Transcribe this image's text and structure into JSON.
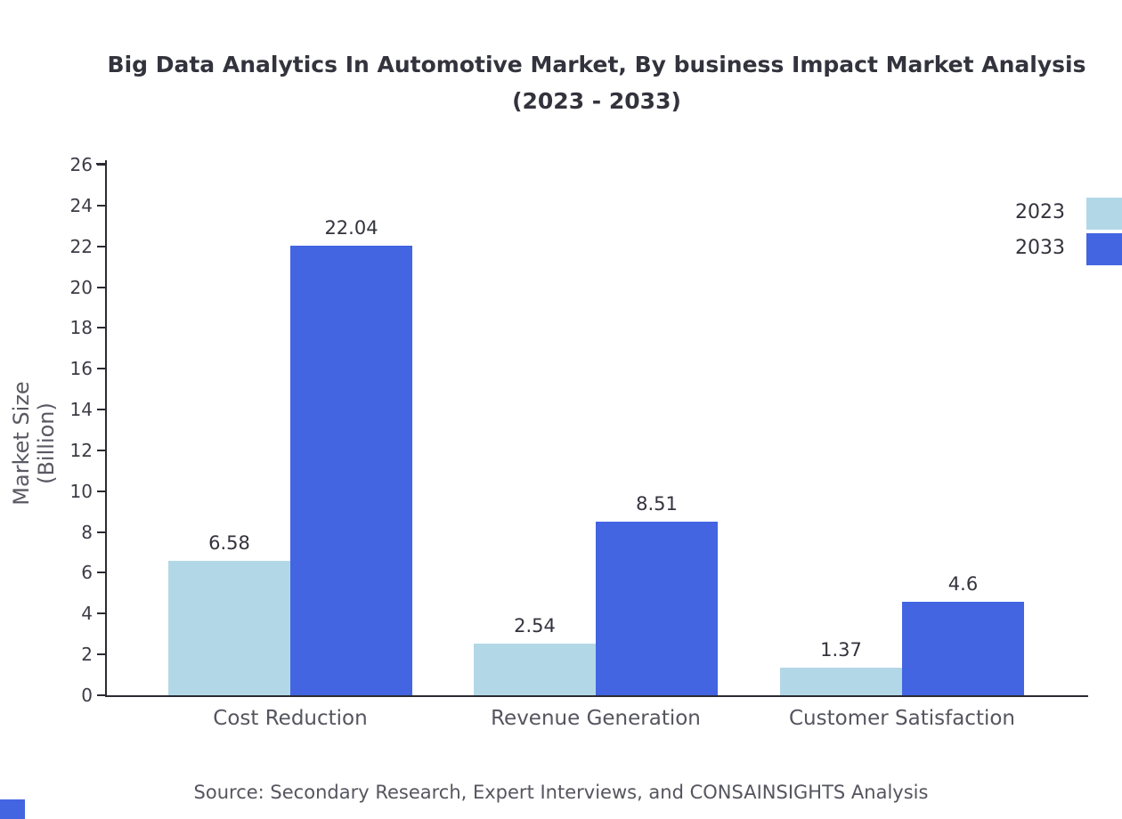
{
  "title": "Big Data Analytics In Automotive Market, By business Impact Market Analysis (2023 - 2033)",
  "source": "Source: Secondary Research, Expert Interviews, and CONSAINSIGHTS Analysis",
  "colors": {
    "series_2023": "#b2d8e8",
    "series_2033": "#4365e2",
    "axis": "#2b2b33"
  },
  "chart_data": {
    "type": "bar",
    "title": "Big Data Analytics In Automotive Market, By business Impact Market Analysis (2023 - 2033)",
    "xlabel": "",
    "ylabel": "Market Size (Billion)",
    "categories": [
      "Cost Reduction",
      "Revenue Generation",
      "Customer Satisfaction"
    ],
    "series": [
      {
        "name": "2023",
        "color": "#b2d8e8",
        "values": [
          6.58,
          2.54,
          1.37
        ]
      },
      {
        "name": "2033",
        "color": "#4365e2",
        "values": [
          22.04,
          8.51,
          4.6
        ]
      }
    ],
    "value_labels": [
      [
        "6.58",
        "2.54",
        "1.37"
      ],
      [
        "22.04",
        "8.51",
        "4.6"
      ]
    ],
    "ylim": [
      0,
      26
    ],
    "ytick_step": 2,
    "grid": false,
    "legend_position": "top-right"
  }
}
